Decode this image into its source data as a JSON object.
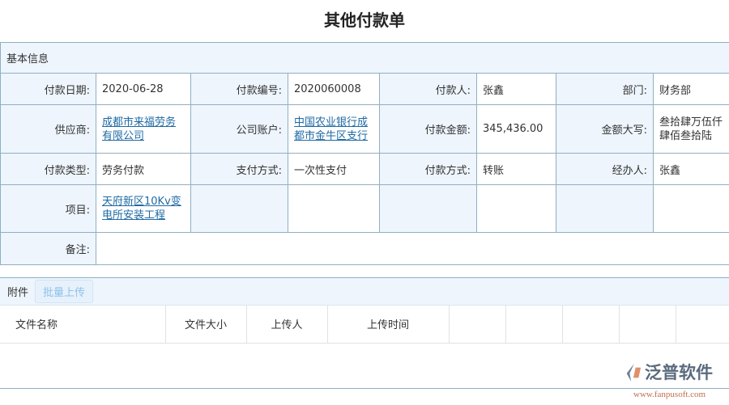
{
  "title": "其他付款单",
  "section": "基本信息",
  "rows": [
    [
      {
        "label": "付款日期:",
        "value": "2020-06-28"
      },
      {
        "label": "付款编号:",
        "value": "2020060008"
      },
      {
        "label": "付款人:",
        "value": "张鑫"
      },
      {
        "label": "部门:",
        "value": "财务部"
      }
    ],
    [
      {
        "label": "供应商:",
        "value": "成都市来福劳务有限公司",
        "link": true
      },
      {
        "label": "公司账户:",
        "value": "中国农业银行成都市金牛区支行",
        "link": true
      },
      {
        "label": "付款金额:",
        "value": "345,436.00"
      },
      {
        "label": "金额大写:",
        "value": "叁拾肆万伍仟肆佰叁拾陆"
      }
    ],
    [
      {
        "label": "付款类型:",
        "value": "劳务付款"
      },
      {
        "label": "支付方式:",
        "value": "一次性支付"
      },
      {
        "label": "付款方式:",
        "value": "转账"
      },
      {
        "label": "经办人:",
        "value": "张鑫"
      }
    ],
    [
      {
        "label": "项目:",
        "value": "天府新区10Kv变电所安装工程",
        "link": true
      }
    ]
  ],
  "remark_label": "备注:",
  "remark_value": "",
  "attachments": {
    "label": "附件",
    "upload_button": "批量上传",
    "columns": [
      "文件名称",
      "文件大小",
      "上传人",
      "上传时间",
      "",
      "",
      "",
      "",
      ""
    ]
  },
  "logo": {
    "text": "泛普软件",
    "url": "www.fanpusoft.com"
  }
}
